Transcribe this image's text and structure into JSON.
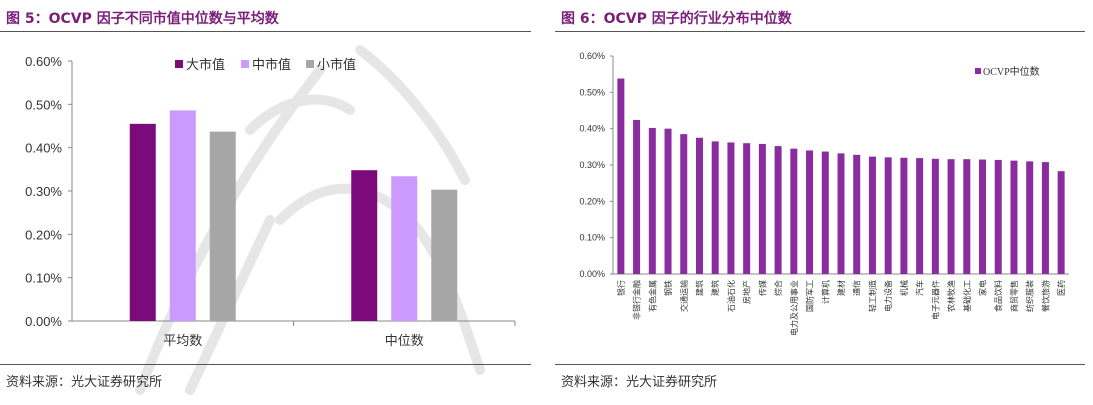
{
  "left": {
    "figure_title": "图 5：OCVP 因子不同市值中位数与平均数",
    "source": "资料来源：光大证券研究所"
  },
  "right": {
    "figure_title": "图 6：OCVP 因子的行业分布中位数",
    "source": "资料来源：光大证券研究所"
  },
  "colors": {
    "title": "#7a1f7a",
    "large": "#7b0a7b",
    "mid": "#cc99ff",
    "small": "#a6a6a6",
    "industry": "#8a2b9e"
  },
  "chart_data": [
    {
      "type": "bar",
      "categories": [
        "平均数",
        "中位数"
      ],
      "series": [
        {
          "name": "大市值",
          "values": [
            0.455,
            0.348
          ]
        },
        {
          "name": "中市值",
          "values": [
            0.486,
            0.334
          ]
        },
        {
          "name": "小市值",
          "values": [
            0.437,
            0.303
          ]
        }
      ],
      "unit": "%",
      "yticks": [
        "0.00%",
        "0.10%",
        "0.20%",
        "0.30%",
        "0.40%",
        "0.50%",
        "0.60%"
      ],
      "ylim": [
        0,
        0.6
      ],
      "legend": "top-center",
      "grid": false
    },
    {
      "type": "bar",
      "categories": [
        "银行",
        "非银行金融",
        "有色金属",
        "钢铁",
        "交通运输",
        "建筑",
        "建筑",
        "石油石化",
        "房地产",
        "传媒",
        "综合",
        "电力及公用事业",
        "国防军工",
        "计算机",
        "建材",
        "通信",
        "轻工制造",
        "电力设备",
        "机械",
        "汽车",
        "电子元器件",
        "农林牧渔",
        "基础化工",
        "家电",
        "食品饮料",
        "商贸零售",
        "纺织服装",
        "餐饮旅游",
        "医药"
      ],
      "series": [
        {
          "name": "OCVP中位数",
          "values": [
            0.538,
            0.424,
            0.402,
            0.4,
            0.385,
            0.375,
            0.365,
            0.362,
            0.36,
            0.358,
            0.352,
            0.345,
            0.34,
            0.337,
            0.332,
            0.328,
            0.323,
            0.321,
            0.32,
            0.319,
            0.317,
            0.316,
            0.316,
            0.315,
            0.314,
            0.312,
            0.31,
            0.308,
            0.283
          ]
        }
      ],
      "unit": "%",
      "yticks": [
        "0.00%",
        "0.10%",
        "0.20%",
        "0.30%",
        "0.40%",
        "0.50%",
        "0.60%"
      ],
      "ylim": [
        0,
        0.6
      ],
      "legend": "top-right",
      "grid": false
    }
  ]
}
